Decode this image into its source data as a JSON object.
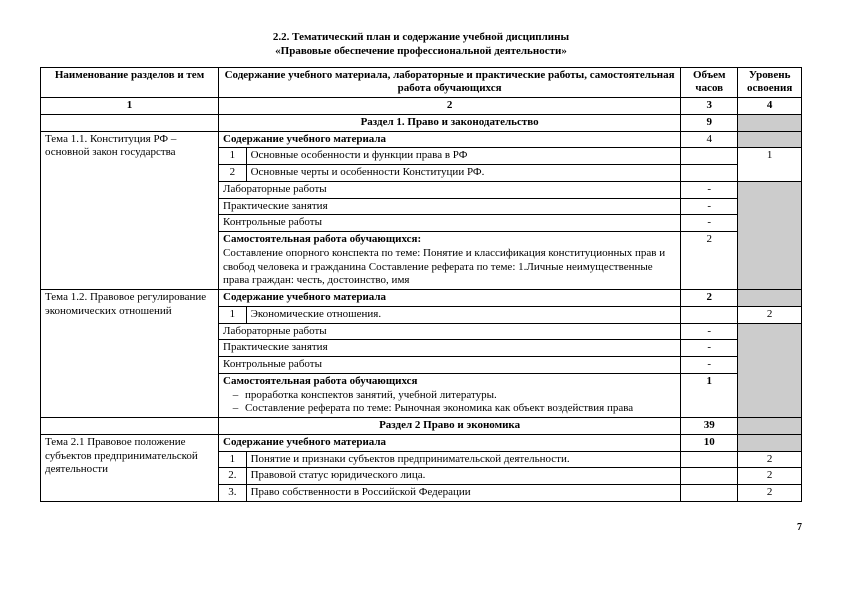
{
  "title": {
    "line1": "2.2. Тематический план и содержание учебной дисциплины",
    "line2": "«Правовые обеспечение профессиональной деятельности»"
  },
  "header": {
    "col1": "Наименование разделов и тем",
    "col2": "Содержание учебного материала, лабораторные и практические работы, самостоятельная работа обучающихся",
    "col3": "Объем часов",
    "col4": "Уровень освоения"
  },
  "numrow": {
    "c1": "1",
    "c2": "2",
    "c3": "3",
    "c4": "4"
  },
  "section1": {
    "title": "Раздел 1. Право и законодательство",
    "hours": "9"
  },
  "t11": {
    "name": "Тема 1.1.  Конституция РФ – основной закон государства",
    "content_label": "Содержание учебного материала",
    "content_hours": "4",
    "row1_n": "1",
    "row1_t": "Основные особенности и функции права в РФ",
    "row2_n": "2",
    "row2_t": "Основные черты и особенности Конституции РФ.",
    "level": "1",
    "lab": "Лабораторные работы",
    "lab_h": "-",
    "prac": "Практические занятия",
    "prac_h": "-",
    "ctrl": "Контрольные работы",
    "ctrl_h": "-",
    "self_label": "Самостоятельная работа обучающихся:",
    "self_text": "Составление опорного конспекта по теме: Понятие и классификация конституционных прав и свобод человека и гражданина Составление реферата по теме: 1.Личные неимущественные права граждан: честь, достоинство, имя",
    "self_h": "2"
  },
  "t12": {
    "name": "Тема 1.2. Правовое регулирование экономических отношений",
    "content_label": "Содержание учебного материала",
    "content_hours": "2",
    "row1_n": "1",
    "row1_t": "Экономические отношения.",
    "level": "2",
    "lab": "Лабораторные работы",
    "lab_h": "-",
    "prac": "Практические занятия",
    "prac_h": "-",
    "ctrl": "Контрольные работы",
    "ctrl_h": "-",
    "self_label": "Самостоятельная работа обучающихся",
    "self_b1": "проработка конспектов занятий, учебной литературы.",
    "self_b2": "Составление реферата по теме: Рыночная экономика как объект воздействия права",
    "self_h": "1"
  },
  "section2": {
    "title": "Раздел 2 Право и экономика",
    "hours": "39"
  },
  "t21": {
    "name": "Тема 2.1 Правовое положение субъектов предпринимательской деятельности",
    "content_label": "Содержание учебного материала",
    "content_hours": "10",
    "row1_n": "1",
    "row1_t": "Понятие и признаки субъектов предпринимательской деятельности.",
    "row1_lvl": "2",
    "row2_n": "2.",
    "row2_t": "Правовой статус  юридического лица.",
    "row2_lvl": "2",
    "row3_n": "3.",
    "row3_t": "Право собственности  в Российской Федерации",
    "row3_lvl": "2"
  },
  "page": "7"
}
